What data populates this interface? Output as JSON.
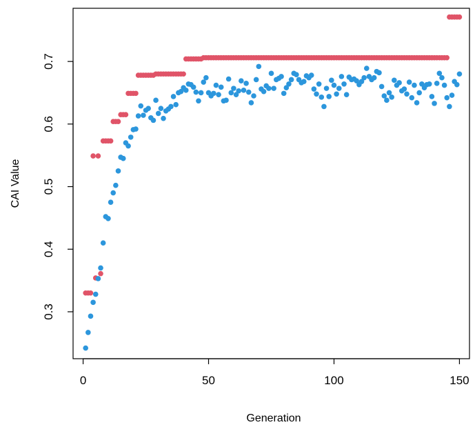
{
  "chart_data": {
    "type": "scatter",
    "title": "",
    "xlabel": "Generation",
    "ylabel": "CAI Value",
    "xlim": [
      -4,
      154
    ],
    "ylim": [
      0.225,
      0.785
    ],
    "xticks": [
      0,
      50,
      100,
      150
    ],
    "yticks": [
      0.3,
      0.4,
      0.5,
      0.6,
      0.7
    ],
    "xtick_labels": [
      "0",
      "50",
      "100",
      "150"
    ],
    "ytick_labels": [
      "0.3",
      "0.4",
      "0.5",
      "0.6",
      "0.7"
    ],
    "grid": false,
    "legend": "none",
    "series": [
      {
        "color": "#e05468",
        "x": [
          1,
          2,
          3,
          4,
          5,
          6,
          7,
          8,
          9,
          10,
          11,
          12,
          13,
          14,
          15,
          16,
          17,
          18,
          19,
          20,
          21,
          22,
          23,
          24,
          25,
          26,
          27,
          28,
          29,
          30,
          31,
          32,
          33,
          34,
          35,
          36,
          37,
          38,
          39,
          40,
          41,
          42,
          43,
          44,
          45,
          46,
          47,
          48,
          49,
          50,
          51,
          52,
          53,
          54,
          55,
          56,
          57,
          58,
          59,
          60,
          61,
          62,
          63,
          64,
          65,
          66,
          67,
          68,
          69,
          70,
          71,
          72,
          73,
          74,
          75,
          76,
          77,
          78,
          79,
          80,
          81,
          82,
          83,
          84,
          85,
          86,
          87,
          88,
          89,
          90,
          91,
          92,
          93,
          94,
          95,
          96,
          97,
          98,
          99,
          100,
          101,
          102,
          103,
          104,
          105,
          106,
          107,
          108,
          109,
          110,
          111,
          112,
          113,
          114,
          115,
          116,
          117,
          118,
          119,
          120,
          121,
          122,
          123,
          124,
          125,
          126,
          127,
          128,
          129,
          130,
          131,
          132,
          133,
          134,
          135,
          136,
          137,
          138,
          139,
          140,
          141,
          142,
          143,
          144,
          145,
          146,
          147,
          148,
          149,
          150
        ],
        "y": [
          0.33,
          0.33,
          0.33,
          0.549,
          0.354,
          0.549,
          0.361,
          0.573,
          0.573,
          0.573,
          0.573,
          0.604,
          0.604,
          0.604,
          0.615,
          0.615,
          0.615,
          0.649,
          0.649,
          0.649,
          0.649,
          0.678,
          0.678,
          0.678,
          0.678,
          0.678,
          0.678,
          0.678,
          0.68,
          0.68,
          0.68,
          0.68,
          0.68,
          0.68,
          0.68,
          0.68,
          0.68,
          0.68,
          0.68,
          0.68,
          0.704,
          0.704,
          0.704,
          0.704,
          0.704,
          0.704,
          0.704,
          0.706,
          0.706,
          0.706,
          0.706,
          0.706,
          0.706,
          0.706,
          0.706,
          0.706,
          0.706,
          0.706,
          0.706,
          0.706,
          0.706,
          0.706,
          0.706,
          0.706,
          0.706,
          0.706,
          0.706,
          0.706,
          0.706,
          0.706,
          0.706,
          0.706,
          0.706,
          0.706,
          0.706,
          0.706,
          0.706,
          0.706,
          0.706,
          0.706,
          0.706,
          0.706,
          0.706,
          0.706,
          0.706,
          0.706,
          0.706,
          0.706,
          0.706,
          0.706,
          0.706,
          0.706,
          0.706,
          0.706,
          0.706,
          0.706,
          0.706,
          0.706,
          0.706,
          0.706,
          0.706,
          0.706,
          0.706,
          0.706,
          0.706,
          0.706,
          0.706,
          0.706,
          0.706,
          0.706,
          0.706,
          0.706,
          0.706,
          0.706,
          0.706,
          0.706,
          0.706,
          0.706,
          0.706,
          0.706,
          0.706,
          0.706,
          0.706,
          0.706,
          0.706,
          0.706,
          0.706,
          0.706,
          0.706,
          0.706,
          0.706,
          0.706,
          0.706,
          0.706,
          0.706,
          0.706,
          0.706,
          0.706,
          0.706,
          0.706,
          0.706,
          0.706,
          0.706,
          0.706,
          0.706,
          0.771,
          0.771,
          0.771,
          0.771,
          0.771
        ]
      },
      {
        "color": "#2c96dc",
        "x": [
          1,
          2,
          3,
          4,
          5,
          6,
          7,
          8,
          9,
          10,
          11,
          12,
          13,
          14,
          15,
          16,
          17,
          18,
          19,
          20,
          21,
          22,
          23,
          24,
          25,
          26,
          27,
          28,
          29,
          30,
          31,
          32,
          33,
          34,
          35,
          36,
          37,
          38,
          39,
          40,
          41,
          42,
          43,
          44,
          45,
          46,
          47,
          48,
          49,
          50,
          51,
          52,
          53,
          54,
          55,
          56,
          57,
          58,
          59,
          60,
          61,
          62,
          63,
          64,
          65,
          66,
          67,
          68,
          69,
          70,
          71,
          72,
          73,
          74,
          75,
          76,
          77,
          78,
          79,
          80,
          81,
          82,
          83,
          84,
          85,
          86,
          87,
          88,
          89,
          90,
          91,
          92,
          93,
          94,
          95,
          96,
          97,
          98,
          99,
          100,
          101,
          102,
          103,
          104,
          105,
          106,
          107,
          108,
          109,
          110,
          111,
          112,
          113,
          114,
          115,
          116,
          117,
          118,
          119,
          120,
          121,
          122,
          123,
          124,
          125,
          126,
          127,
          128,
          129,
          130,
          131,
          132,
          133,
          134,
          135,
          136,
          137,
          138,
          139,
          140,
          141,
          142,
          143,
          144,
          145,
          146,
          147,
          148,
          149,
          150
        ],
        "y": [
          0.242,
          0.267,
          0.293,
          0.315,
          0.328,
          0.353,
          0.37,
          0.41,
          0.452,
          0.449,
          0.475,
          0.49,
          0.502,
          0.525,
          0.547,
          0.545,
          0.57,
          0.565,
          0.579,
          0.591,
          0.592,
          0.613,
          0.629,
          0.614,
          0.622,
          0.625,
          0.61,
          0.606,
          0.638,
          0.617,
          0.625,
          0.609,
          0.621,
          0.624,
          0.628,
          0.644,
          0.631,
          0.65,
          0.652,
          0.658,
          0.654,
          0.664,
          0.663,
          0.659,
          0.651,
          0.637,
          0.65,
          0.667,
          0.674,
          0.65,
          0.645,
          0.649,
          0.662,
          0.647,
          0.659,
          0.637,
          0.638,
          0.672,
          0.65,
          0.657,
          0.647,
          0.653,
          0.669,
          0.654,
          0.665,
          0.651,
          0.634,
          0.645,
          0.671,
          0.692,
          0.656,
          0.652,
          0.661,
          0.657,
          0.681,
          0.657,
          0.671,
          0.673,
          0.676,
          0.649,
          0.658,
          0.664,
          0.671,
          0.681,
          0.679,
          0.671,
          0.666,
          0.668,
          0.677,
          0.674,
          0.678,
          0.656,
          0.648,
          0.664,
          0.643,
          0.628,
          0.657,
          0.644,
          0.67,
          0.662,
          0.648,
          0.657,
          0.676,
          0.664,
          0.647,
          0.675,
          0.671,
          0.672,
          0.669,
          0.663,
          0.668,
          0.674,
          0.689,
          0.676,
          0.671,
          0.674,
          0.684,
          0.682,
          0.66,
          0.645,
          0.638,
          0.65,
          0.643,
          0.67,
          0.662,
          0.666,
          0.653,
          0.656,
          0.648,
          0.667,
          0.642,
          0.662,
          0.634,
          0.65,
          0.664,
          0.658,
          0.663,
          0.664,
          0.644,
          0.633,
          0.665,
          0.681,
          0.674,
          0.662,
          0.642,
          0.628,
          0.646,
          0.668,
          0.663,
          0.68
        ]
      }
    ]
  }
}
